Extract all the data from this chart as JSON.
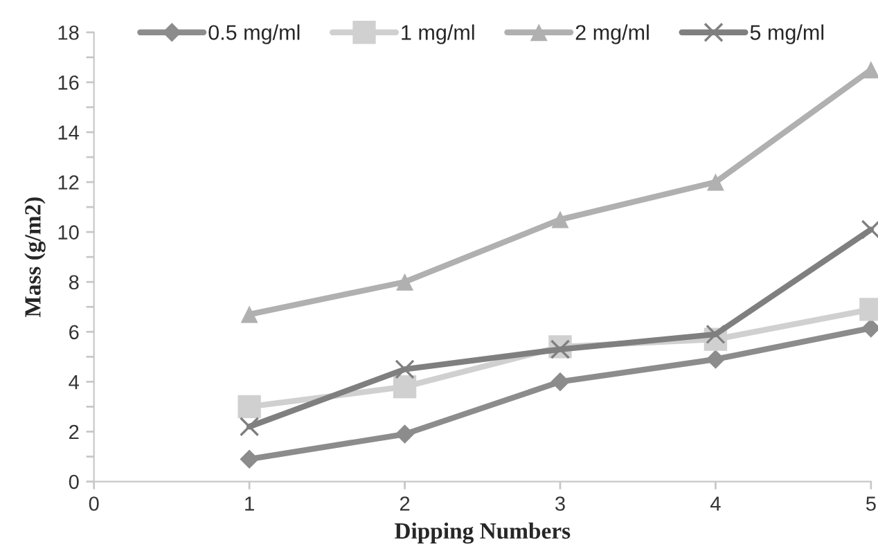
{
  "chart_data": {
    "type": "line",
    "xlabel": "Dipping Numbers",
    "ylabel": "Mass (g/m2)",
    "x": [
      1,
      2,
      3,
      4,
      5
    ],
    "series": [
      {
        "name": "0.5 mg/ml",
        "color": "#8c8c8c",
        "marker": "diamond",
        "values": [
          0.9,
          1.9,
          4.0,
          4.9,
          6.15
        ]
      },
      {
        "name": "1 mg/ml",
        "color": "#d0d0d0",
        "marker": "square",
        "values": [
          3.0,
          3.8,
          5.4,
          5.7,
          6.9
        ]
      },
      {
        "name": "2 mg/ml",
        "color": "#b0b0b0",
        "marker": "triangle",
        "values": [
          6.7,
          8.0,
          10.5,
          12.0,
          16.5
        ]
      },
      {
        "name": "5 mg/ml",
        "color": "#7f7f7f",
        "marker": "cross",
        "values": [
          2.2,
          4.5,
          5.3,
          5.9,
          10.1
        ]
      }
    ],
    "xlim": [
      0,
      5
    ],
    "xticks": [
      0,
      1,
      2,
      3,
      4,
      5
    ],
    "ylim": [
      0,
      18
    ],
    "yticks": [
      0,
      {
        "value": 1,
        "label": null
      },
      2,
      {
        "value": 3,
        "label": null
      },
      4,
      {
        "value": 5,
        "label": null
      },
      6,
      {
        "value": 7,
        "label": null
      },
      8,
      {
        "value": 9,
        "label": null
      },
      10,
      {
        "value": 11,
        "label": null
      },
      12,
      {
        "value": 13,
        "label": null
      },
      14,
      {
        "value": 15,
        "label": null
      },
      16,
      {
        "value": 17,
        "label": null
      },
      18
    ],
    "grid": false,
    "legend": "top",
    "line_style": "solid"
  }
}
